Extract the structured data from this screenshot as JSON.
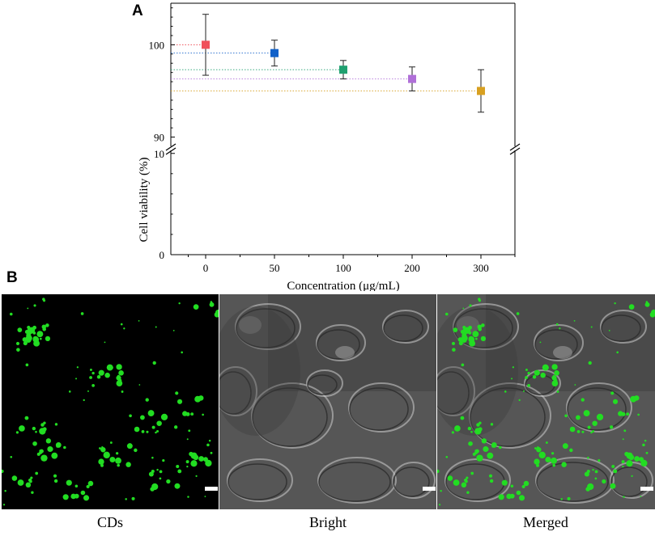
{
  "panels": {
    "a_label": "A",
    "b_label": "B"
  },
  "chart_data": {
    "type": "scatter",
    "title": "",
    "xlabel": "Concentration (μg/mL)",
    "ylabel": "Cell viability (%)",
    "categories": [
      "0",
      "50",
      "100",
      "200",
      "300"
    ],
    "values": [
      100.0,
      99.1,
      97.3,
      96.3,
      95.0
    ],
    "error": [
      3.3,
      1.4,
      1.0,
      1.3,
      2.3
    ],
    "ylim_lower": [
      0,
      10
    ],
    "ylim_upper": [
      89,
      104.5
    ],
    "yticks_lower": [
      0,
      10
    ],
    "yticks_upper": [
      90,
      100
    ],
    "y_axis_break": true,
    "reference_lines": "dotted horizontal lines at each mean value",
    "marker_colors": [
      "#f0505a",
      "#1060c8",
      "#20a070",
      "#b070d8",
      "#d8a020"
    ],
    "grid": false
  },
  "images": {
    "captions": [
      "CDs",
      "Bright",
      "Merged"
    ],
    "fluorescence_color": "#22dd22",
    "scale_bar_color": "#ffffff"
  }
}
